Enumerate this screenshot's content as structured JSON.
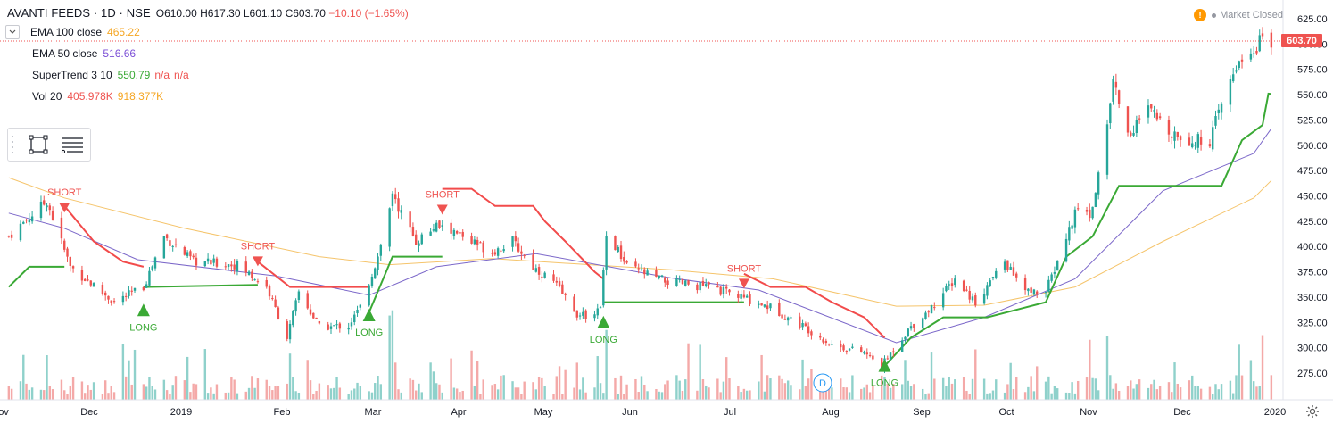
{
  "header": {
    "symbol": "AVANTI FEEDS · 1D · NSE",
    "open": "O610.00",
    "high": "H617.30",
    "low": "L601.10",
    "close": "C603.70",
    "change": "−10.10 (−1.65%)"
  },
  "market_status": "Market Closed",
  "last_price_label": "603.70",
  "indicators": [
    {
      "name": "EMA 100 close",
      "values": [
        "465.22"
      ],
      "colors": [
        "#f5a623"
      ]
    },
    {
      "name": "EMA 50 close",
      "values": [
        "516.66"
      ],
      "colors": [
        "#7b4fd6"
      ]
    },
    {
      "name": "SuperTrend 3 10",
      "values": [
        "550.79",
        "n/a",
        "n/a"
      ],
      "colors": [
        "#3aa935",
        "#ef5350",
        "#ef5350"
      ]
    },
    {
      "name": "Vol 20",
      "values": [
        "405.978K",
        "918.377K"
      ],
      "colors": [
        "#ef5350",
        "#f5a623"
      ]
    }
  ],
  "colors": {
    "up": "#26a69a",
    "down": "#ef5350",
    "supertrend_up": "#3aa935",
    "supertrend_down": "#f24b4b",
    "ema100": "#f5c46b",
    "ema50": "#7b67c9",
    "vol_up": "#8fd1cb",
    "vol_down": "#f4a9a8"
  },
  "icons": [
    "warning-icon",
    "chevron-down-icon",
    "rectangle-select-icon",
    "list-menu-icon",
    "gear-icon"
  ],
  "chart_data": {
    "type": "candlestick",
    "y_axis_ticks": [
      "625.00",
      "600.00",
      "575.00",
      "550.00",
      "525.00",
      "500.00",
      "475.00",
      "450.00",
      "425.00",
      "400.00",
      "375.00",
      "350.00",
      "325.00",
      "300.00",
      "275.00"
    ],
    "x_axis_ticks": [
      "ov",
      "Dec",
      "2019",
      "Feb",
      "Mar",
      "Apr",
      "May",
      "Jun",
      "Jul",
      "Aug",
      "Sep",
      "Oct",
      "Nov",
      "Dec",
      "2020"
    ],
    "ylim": [
      263,
      636
    ],
    "signals": [
      {
        "label": "SHORT",
        "date": "2018-11-20",
        "price": 437
      },
      {
        "label": "LONG",
        "date": "2018-12-17",
        "price": 340
      },
      {
        "label": "SHORT",
        "date": "2019-01-25",
        "price": 384
      },
      {
        "label": "LONG",
        "date": "2019-03-04",
        "price": 335
      },
      {
        "label": "SHORT",
        "date": "2019-03-29",
        "price": 435
      },
      {
        "label": "LONG",
        "date": "2019-05-23",
        "price": 328
      },
      {
        "label": "SHORT",
        "date": "2019-07-10",
        "price": 362
      },
      {
        "label": "LONG",
        "date": "2019-08-27",
        "price": 285
      }
    ],
    "close_keypoints": [
      [
        "2018-11-01",
        410
      ],
      [
        "2018-11-14",
        445
      ],
      [
        "2018-11-22",
        380
      ],
      [
        "2018-12-07",
        345
      ],
      [
        "2018-12-17",
        360
      ],
      [
        "2018-12-24",
        410
      ],
      [
        "2019-01-03",
        385
      ],
      [
        "2019-01-18",
        382
      ],
      [
        "2019-01-28",
        360
      ],
      [
        "2019-02-04",
        310
      ],
      [
        "2019-02-08",
        355
      ],
      [
        "2019-02-15",
        320
      ],
      [
        "2019-02-25",
        322
      ],
      [
        "2019-03-01",
        340
      ],
      [
        "2019-03-07",
        390
      ],
      [
        "2019-03-12",
        450
      ],
      [
        "2019-03-20",
        405
      ],
      [
        "2019-03-27",
        420
      ],
      [
        "2019-04-01",
        415
      ],
      [
        "2019-04-15",
        395
      ],
      [
        "2019-04-22",
        405
      ],
      [
        "2019-04-29",
        380
      ],
      [
        "2019-05-06",
        365
      ],
      [
        "2019-05-15",
        330
      ],
      [
        "2019-05-22",
        338
      ],
      [
        "2019-05-24",
        415
      ],
      [
        "2019-05-31",
        380
      ],
      [
        "2019-06-14",
        365
      ],
      [
        "2019-06-28",
        360
      ],
      [
        "2019-07-09",
        350
      ],
      [
        "2019-07-19",
        340
      ],
      [
        "2019-07-31",
        320
      ],
      [
        "2019-08-09",
        303
      ],
      [
        "2019-08-20",
        295
      ],
      [
        "2019-08-26",
        282
      ],
      [
        "2019-09-04",
        318
      ],
      [
        "2019-09-12",
        340
      ],
      [
        "2019-09-20",
        368
      ],
      [
        "2019-09-27",
        345
      ],
      [
        "2019-10-07",
        385
      ],
      [
        "2019-10-14",
        355
      ],
      [
        "2019-10-21",
        355
      ],
      [
        "2019-10-25",
        385
      ],
      [
        "2019-11-01",
        440
      ],
      [
        "2019-11-05",
        430
      ],
      [
        "2019-11-07",
        455
      ],
      [
        "2019-11-11",
        520
      ],
      [
        "2019-11-13",
        565
      ],
      [
        "2019-11-18",
        510
      ],
      [
        "2019-11-25",
        535
      ],
      [
        "2019-12-02",
        515
      ],
      [
        "2019-12-09",
        505
      ],
      [
        "2019-12-16",
        505
      ],
      [
        "2019-12-20",
        540
      ],
      [
        "2019-12-26",
        585
      ],
      [
        "2020-01-01",
        590
      ],
      [
        "2020-01-03",
        614
      ],
      [
        "2020-01-06",
        603.7
      ]
    ],
    "ema100": [
      [
        "2018-11-01",
        468
      ],
      [
        "2018-11-20",
        448
      ],
      [
        "2018-12-31",
        418
      ],
      [
        "2019-02-15",
        390
      ],
      [
        "2019-03-11",
        382
      ],
      [
        "2019-04-15",
        388
      ],
      [
        "2019-06-15",
        377
      ],
      [
        "2019-07-20",
        368
      ],
      [
        "2019-08-31",
        341
      ],
      [
        "2019-09-30",
        342
      ],
      [
        "2019-10-31",
        360
      ],
      [
        "2019-11-30",
        405
      ],
      [
        "2019-12-31",
        448
      ],
      [
        "2020-01-06",
        465.22
      ]
    ],
    "ema50": [
      [
        "2018-11-01",
        433
      ],
      [
        "2018-11-20",
        418
      ],
      [
        "2018-12-15",
        387
      ],
      [
        "2019-01-31",
        371
      ],
      [
        "2019-03-04",
        352
      ],
      [
        "2019-03-27",
        380
      ],
      [
        "2019-04-30",
        393
      ],
      [
        "2019-06-15",
        369
      ],
      [
        "2019-07-15",
        357
      ],
      [
        "2019-08-31",
        305
      ],
      [
        "2019-09-30",
        330
      ],
      [
        "2019-10-31",
        368
      ],
      [
        "2019-11-30",
        455
      ],
      [
        "2019-12-31",
        492
      ],
      [
        "2020-01-06",
        516.66
      ]
    ],
    "supertrend": [
      {
        "trend": "up",
        "points": [
          [
            "2018-11-01",
            360
          ],
          [
            "2018-11-08",
            380
          ],
          [
            "2018-11-20",
            380
          ]
        ]
      },
      {
        "trend": "down",
        "points": [
          [
            "2018-11-20",
            440
          ],
          [
            "2018-11-30",
            405
          ],
          [
            "2018-12-10",
            385
          ],
          [
            "2018-12-17",
            380
          ]
        ]
      },
      {
        "trend": "up",
        "points": [
          [
            "2018-12-17",
            360
          ],
          [
            "2019-01-25",
            362
          ]
        ]
      },
      {
        "trend": "down",
        "points": [
          [
            "2019-01-25",
            385
          ],
          [
            "2019-02-05",
            360
          ],
          [
            "2019-03-04",
            360
          ]
        ]
      },
      {
        "trend": "up",
        "points": [
          [
            "2019-03-04",
            335
          ],
          [
            "2019-03-12",
            390
          ],
          [
            "2019-03-29",
            390
          ]
        ]
      },
      {
        "trend": "down",
        "points": [
          [
            "2019-03-29",
            457
          ],
          [
            "2019-04-08",
            457
          ],
          [
            "2019-04-16",
            440
          ],
          [
            "2019-04-29",
            440
          ],
          [
            "2019-05-03",
            425
          ],
          [
            "2019-05-10",
            405
          ],
          [
            "2019-05-20",
            375
          ],
          [
            "2019-05-23",
            368
          ]
        ]
      },
      {
        "trend": "up",
        "points": [
          [
            "2019-05-23",
            345
          ],
          [
            "2019-07-10",
            345
          ]
        ]
      },
      {
        "trend": "down",
        "points": [
          [
            "2019-07-10",
            373
          ],
          [
            "2019-07-19",
            360
          ],
          [
            "2019-07-31",
            360
          ],
          [
            "2019-08-09",
            345
          ],
          [
            "2019-08-20",
            330
          ],
          [
            "2019-08-27",
            310
          ]
        ]
      },
      {
        "trend": "up",
        "points": [
          [
            "2019-08-27",
            282
          ],
          [
            "2019-09-05",
            310
          ],
          [
            "2019-09-16",
            330
          ],
          [
            "2019-10-01",
            330
          ],
          [
            "2019-10-21",
            345
          ],
          [
            "2019-10-28",
            390
          ],
          [
            "2019-11-06",
            410
          ],
          [
            "2019-11-15",
            460
          ],
          [
            "2019-12-20",
            460
          ],
          [
            "2019-12-27",
            505
          ],
          [
            "2020-01-03",
            520
          ],
          [
            "2020-01-05",
            551
          ],
          [
            "2020-01-06",
            550.79
          ]
        ]
      }
    ],
    "volume_note": "Volume histogram scaled to bottom pane; bar heights follow candle direction colors."
  }
}
